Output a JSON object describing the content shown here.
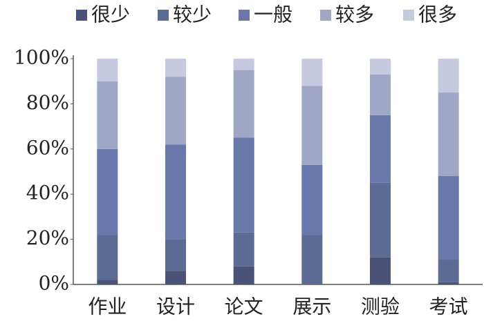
{
  "chart_data": {
    "type": "stacked_bar",
    "categories": [
      "作业",
      "设计",
      "论文",
      "展示",
      "测验",
      "考试"
    ],
    "series": [
      {
        "name": "很少",
        "color": "#4a5377",
        "values": [
          2,
          6,
          8,
          0,
          12,
          1
        ]
      },
      {
        "name": "较少",
        "color": "#5b6b93",
        "values": [
          20,
          14,
          15,
          22,
          33,
          10
        ]
      },
      {
        "name": "一般",
        "color": "#6878aa",
        "values": [
          38,
          42,
          42,
          31,
          30,
          37
        ]
      },
      {
        "name": "较多",
        "color": "#a0a6c6",
        "values": [
          30,
          30,
          30,
          35,
          18,
          37
        ]
      },
      {
        "name": "很多",
        "color": "#c7c9de",
        "values": [
          10,
          8,
          5,
          12,
          7,
          15
        ]
      }
    ],
    "ylim": [
      0,
      100
    ],
    "yticks": [
      {
        "value": 0,
        "label": "0%"
      },
      {
        "value": 20,
        "label": "20%"
      },
      {
        "value": 40,
        "label": "40%"
      },
      {
        "value": 60,
        "label": "60%"
      },
      {
        "value": 80,
        "label": "80%"
      },
      {
        "value": 100,
        "label": "100%"
      }
    ],
    "grid": false
  }
}
